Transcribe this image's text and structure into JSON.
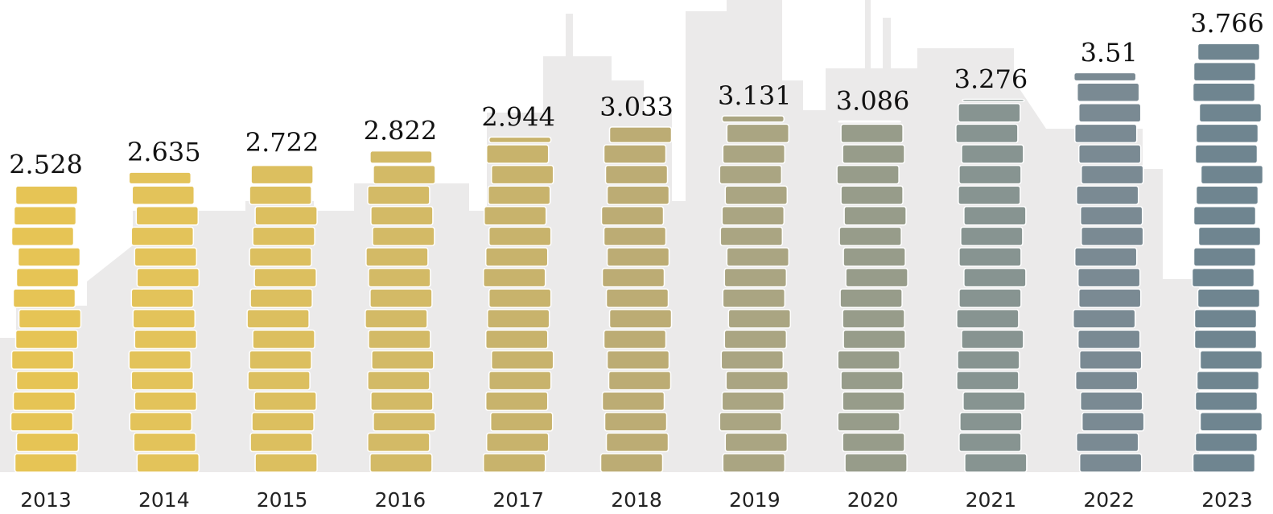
{
  "chart_data": {
    "type": "coin-stack",
    "categories": [
      "2013",
      "2014",
      "2015",
      "2016",
      "2017",
      "2018",
      "2019",
      "2020",
      "2021",
      "2022",
      "2023"
    ],
    "values": [
      2.528,
      2.635,
      2.722,
      2.822,
      2.944,
      3.033,
      3.131,
      3.086,
      3.276,
      3.51,
      3.766
    ],
    "colors": [
      "#e6c455",
      "#e3c35a",
      "#dcbf5f",
      "#d3ba66",
      "#c8b36c",
      "#bcac74",
      "#aaa582",
      "#979c8a",
      "#879491",
      "#7a8a93",
      "#6f8590"
    ]
  }
}
